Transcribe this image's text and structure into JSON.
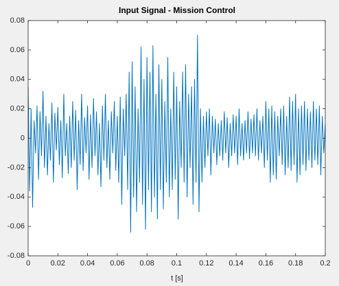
{
  "chart_data": {
    "type": "line",
    "title": "Input Signal - Mission Control",
    "xlabel": "t [s]",
    "xlim": [
      0,
      0.2
    ],
    "xticks": [
      0,
      0.02,
      0.04,
      0.06,
      0.08,
      0.1,
      0.12,
      0.14,
      0.16,
      0.18,
      0.2
    ],
    "ylim": [
      -0.08,
      0.08
    ],
    "yticks": [
      -0.08,
      -0.06,
      -0.04,
      -0.02,
      0,
      0.02,
      0.04,
      0.06,
      0.08
    ],
    "grid": false,
    "x": [
      0,
      0.001,
      0.002,
      0.003,
      0.004,
      0.005,
      0.006,
      0.007,
      0.008,
      0.009,
      0.01,
      0.011,
      0.012,
      0.013,
      0.014,
      0.015,
      0.016,
      0.017,
      0.018,
      0.019,
      0.02,
      0.021,
      0.022,
      0.023,
      0.024,
      0.025,
      0.026,
      0.027,
      0.028,
      0.029,
      0.03,
      0.031,
      0.032,
      0.033,
      0.034,
      0.035,
      0.036,
      0.037,
      0.038,
      0.039,
      0.04,
      0.041,
      0.042,
      0.043,
      0.044,
      0.045,
      0.046,
      0.047,
      0.048,
      0.049,
      0.05,
      0.051,
      0.052,
      0.053,
      0.054,
      0.055,
      0.056,
      0.057,
      0.058,
      0.059,
      0.06,
      0.061,
      0.062,
      0.063,
      0.064,
      0.065,
      0.066,
      0.067,
      0.068,
      0.069,
      0.07,
      0.071,
      0.072,
      0.073,
      0.074,
      0.075,
      0.076,
      0.077,
      0.078,
      0.079,
      0.08,
      0.081,
      0.082,
      0.083,
      0.084,
      0.085,
      0.086,
      0.087,
      0.088,
      0.089,
      0.09,
      0.091,
      0.092,
      0.093,
      0.094,
      0.095,
      0.096,
      0.097,
      0.098,
      0.099,
      0.1,
      0.101,
      0.102,
      0.103,
      0.104,
      0.105,
      0.106,
      0.107,
      0.108,
      0.109,
      0.11,
      0.111,
      0.112,
      0.113,
      0.114,
      0.115,
      0.116,
      0.117,
      0.118,
      0.119,
      0.12,
      0.121,
      0.122,
      0.123,
      0.124,
      0.125,
      0.126,
      0.127,
      0.128,
      0.129,
      0.13,
      0.131,
      0.132,
      0.133,
      0.134,
      0.135,
      0.136,
      0.137,
      0.138,
      0.139,
      0.14,
      0.141,
      0.142,
      0.143,
      0.144,
      0.145,
      0.146,
      0.147,
      0.148,
      0.149,
      0.15,
      0.151,
      0.152,
      0.153,
      0.154,
      0.155,
      0.156,
      0.157,
      0.158,
      0.159,
      0.16,
      0.161,
      0.162,
      0.163,
      0.164,
      0.165,
      0.166,
      0.167,
      0.168,
      0.169,
      0.17,
      0.171,
      0.172,
      0.173,
      0.174,
      0.175,
      0.176,
      0.177,
      0.178,
      0.179,
      0.18,
      0.181,
      0.182,
      0.183,
      0.184,
      0.185,
      0.186,
      0.187,
      0.188,
      0.189,
      0.19,
      0.191,
      0.192,
      0.193,
      0.194,
      0.195,
      0.196,
      0.197,
      0.198,
      0.199,
      0.2
    ],
    "series": [
      {
        "color": "#0072bd",
        "values": [
          0.035,
          -0.036,
          0.02,
          -0.047,
          0.012,
          -0.01,
          0.022,
          -0.028,
          0.018,
          -0.012,
          0.032,
          -0.02,
          0.015,
          -0.025,
          0.01,
          -0.015,
          0.024,
          -0.03,
          0.017,
          -0.008,
          0.021,
          -0.018,
          0.012,
          -0.027,
          0.03,
          -0.012,
          0.01,
          -0.024,
          0.015,
          -0.02,
          0.025,
          -0.015,
          0.019,
          -0.035,
          0.012,
          -0.018,
          0.03,
          -0.022,
          0.014,
          -0.01,
          0.022,
          -0.028,
          0.016,
          -0.02,
          0.027,
          -0.012,
          0.018,
          -0.025,
          0.01,
          -0.033,
          0.022,
          -0.015,
          0.03,
          -0.02,
          0.012,
          -0.028,
          0.018,
          -0.01,
          0.025,
          -0.022,
          0.015,
          -0.03,
          0.028,
          -0.045,
          0.02,
          -0.012,
          0.03,
          -0.035,
          0.045,
          -0.064,
          0.052,
          -0.04,
          0.035,
          -0.05,
          0.02,
          -0.03,
          0.062,
          -0.045,
          0.04,
          -0.062,
          0.055,
          -0.035,
          0.045,
          -0.05,
          0.063,
          -0.04,
          0.03,
          -0.055,
          0.05,
          -0.035,
          0.04,
          -0.048,
          0.025,
          -0.03,
          0.055,
          -0.04,
          0.02,
          -0.035,
          0.045,
          -0.028,
          0.035,
          -0.055,
          0.025,
          -0.02,
          0.045,
          -0.03,
          0.05,
          -0.04,
          0.03,
          -0.02,
          0.035,
          -0.045,
          0.04,
          -0.03,
          0.07,
          -0.05,
          0.02,
          -0.03,
          0.015,
          -0.02,
          0.018,
          -0.012,
          0.02,
          -0.025,
          0.015,
          -0.01,
          0.013,
          -0.018,
          0.01,
          -0.012,
          0.012,
          -0.015,
          0.018,
          -0.01,
          0.014,
          -0.02,
          0.01,
          -0.012,
          0.016,
          -0.01,
          0.015,
          -0.018,
          0.02,
          -0.012,
          0.01,
          -0.015,
          0.012,
          -0.01,
          0.018,
          -0.014,
          0.013,
          -0.01,
          0.016,
          -0.012,
          0.02,
          -0.015,
          0.012,
          -0.01,
          0.015,
          -0.02,
          0.025,
          -0.015,
          0.02,
          -0.03,
          0.022,
          -0.025,
          0.018,
          -0.028,
          0.015,
          -0.012,
          0.02,
          -0.018,
          0.022,
          -0.025,
          0.015,
          -0.02,
          0.028,
          -0.022,
          0.025,
          -0.018,
          0.03,
          -0.03,
          0.02,
          -0.025,
          0.022,
          -0.018,
          0.025,
          -0.022,
          0.02,
          -0.015,
          0.018,
          -0.02,
          0.025,
          -0.015,
          0.02,
          -0.018,
          0.022,
          -0.025,
          0.015,
          -0.01,
          0.01
        ]
      }
    ]
  }
}
